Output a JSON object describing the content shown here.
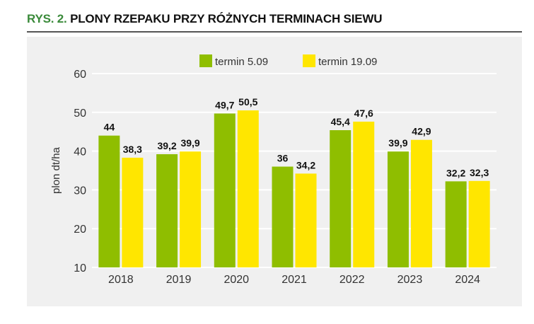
{
  "header": {
    "prefix": "RYS. 2.",
    "title": "PLONY RZEPAKU PRZY RÓŻNYCH TERMINACH SIEWU"
  },
  "chart_data": {
    "type": "bar",
    "title": "PLONY RZEPAKU PRZY RÓŻNYCH TERMINACH SIEWU",
    "xlabel": "",
    "ylabel": "plon dt/ha",
    "ylim": [
      10,
      60
    ],
    "yticks": [
      10,
      20,
      30,
      40,
      50,
      60
    ],
    "grid": true,
    "legend_position": "top",
    "categories": [
      "2018",
      "2019",
      "2020",
      "2021",
      "2022",
      "2023",
      "2024"
    ],
    "series": [
      {
        "name": "termin 5.09",
        "color": "#8fbe00",
        "values": [
          44,
          39.2,
          49.7,
          36,
          45.4,
          39.9,
          32.2
        ],
        "labels": [
          "44",
          "39,2",
          "49,7",
          "36",
          "45,4",
          "39,9",
          "32,2"
        ]
      },
      {
        "name": "termin 19.09",
        "color": "#ffe600",
        "values": [
          38.3,
          39.9,
          50.5,
          34.2,
          47.6,
          42.9,
          32.3
        ],
        "labels": [
          "38,3",
          "39,9",
          "50,5",
          "34,2",
          "47,6",
          "42,9",
          "32,3"
        ]
      }
    ]
  }
}
